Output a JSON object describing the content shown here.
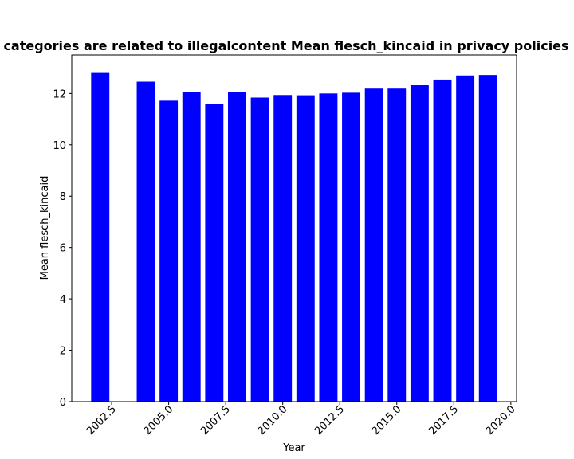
{
  "chart_data": {
    "type": "bar",
    "title": "categories are related to illegalcontent Mean flesch_kincaid in privacy policies",
    "xlabel": "Year",
    "ylabel": "Mean flesch_kincaid",
    "x": [
      2002,
      2004,
      2005,
      2006,
      2007,
      2008,
      2009,
      2010,
      2011,
      2012,
      2013,
      2014,
      2015,
      2016,
      2017,
      2018,
      2019
    ],
    "values": [
      12.83,
      12.46,
      11.72,
      12.05,
      11.6,
      12.05,
      11.84,
      11.94,
      11.93,
      12.0,
      12.03,
      12.19,
      12.19,
      12.32,
      12.54,
      12.7,
      12.72
    ],
    "xlim": [
      2000.75,
      2020.25
    ],
    "ylim": [
      0,
      13.5
    ],
    "xticks": [
      2002.5,
      2005.0,
      2007.5,
      2010.0,
      2012.5,
      2015.0,
      2017.5,
      2020.0
    ],
    "xtick_labels": [
      "2002.5",
      "2005.0",
      "2007.5",
      "2010.0",
      "2012.5",
      "2015.0",
      "2017.5",
      "2020.0"
    ],
    "yticks": [
      0,
      2,
      4,
      6,
      8,
      10,
      12
    ],
    "ytick_labels": [
      "0",
      "2",
      "4",
      "6",
      "8",
      "10",
      "12"
    ],
    "bar_color": "#0000ff",
    "grid": false,
    "legend": "none"
  }
}
